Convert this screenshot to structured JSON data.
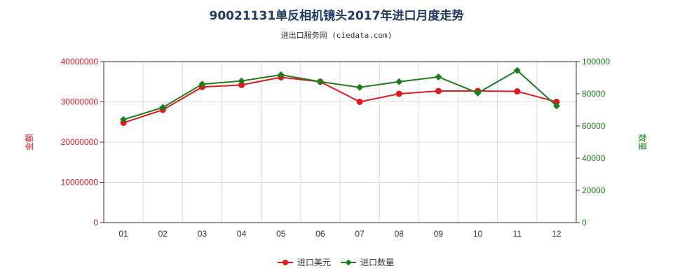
{
  "title": "90021131单反相机镜头2017年进口月度走势",
  "subtitle": "进出口服务网 (ciedata.com)",
  "colors": {
    "amount": "#e0191e",
    "quantity": "#1a7f1a",
    "grid": "#d9d9d9",
    "axis": "#333333"
  },
  "chart_data": {
    "type": "line",
    "categories": [
      "01",
      "02",
      "03",
      "04",
      "05",
      "06",
      "07",
      "08",
      "09",
      "10",
      "11",
      "12"
    ],
    "left_axis": {
      "label": "金额",
      "range": [
        0,
        40000000
      ],
      "ticks": [
        "0",
        "10000000",
        "20000000",
        "30000000",
        "40000000"
      ]
    },
    "right_axis": {
      "label": "数量",
      "range": [
        0,
        100000
      ],
      "ticks": [
        "0",
        "20000",
        "40000",
        "60000",
        "80000",
        "100000"
      ]
    },
    "series": [
      {
        "name": "进口美元",
        "axis": "left",
        "values": [
          24800000,
          28000000,
          33700000,
          34200000,
          36100000,
          35000000,
          30000000,
          32000000,
          32700000,
          32700000,
          32600000,
          30000000
        ]
      },
      {
        "name": "进口数量",
        "axis": "right",
        "values": [
          64000,
          71500,
          86000,
          88000,
          91800,
          87500,
          84000,
          87500,
          90500,
          80500,
          94500,
          72500
        ]
      }
    ],
    "grid": true,
    "legend_position": "bottom"
  }
}
